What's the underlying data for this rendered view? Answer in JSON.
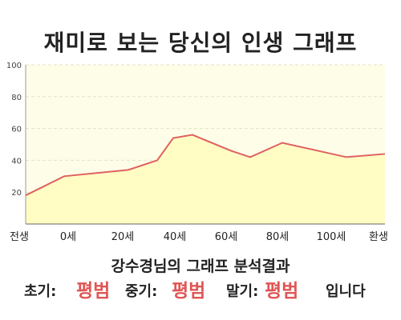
{
  "title": "재미로 보는 당신의 인생 그래프",
  "chart_data": {
    "type": "area",
    "x_tick_labels": [
      "전생",
      "0세",
      "20세",
      "40세",
      "60세",
      "80세",
      "100세",
      "환생"
    ],
    "y_ticks": [
      20,
      40,
      60,
      80,
      100
    ],
    "ylim": [
      0,
      100
    ],
    "grid": true,
    "colors": {
      "line": "#e06060",
      "fill": "#fffdc4",
      "plot_bg": "#fefee8",
      "grid": "#e2e2c6"
    },
    "series": [
      {
        "x": [
          -12,
          0,
          20,
          29,
          34,
          40,
          52,
          58,
          68,
          88,
          100
        ],
        "values": [
          18,
          30,
          34,
          40,
          54,
          56,
          46,
          42,
          51,
          42,
          44
        ]
      }
    ],
    "xlim": [
      -12,
      100
    ]
  },
  "summary": "강수경님의 그래프 분석결과",
  "verdict": {
    "early_label": "초기:",
    "early_value": "평범",
    "middle_label": "중기:",
    "middle_value": "평범",
    "late_label": "말기:",
    "late_value": "평범",
    "ending": "입니다"
  }
}
